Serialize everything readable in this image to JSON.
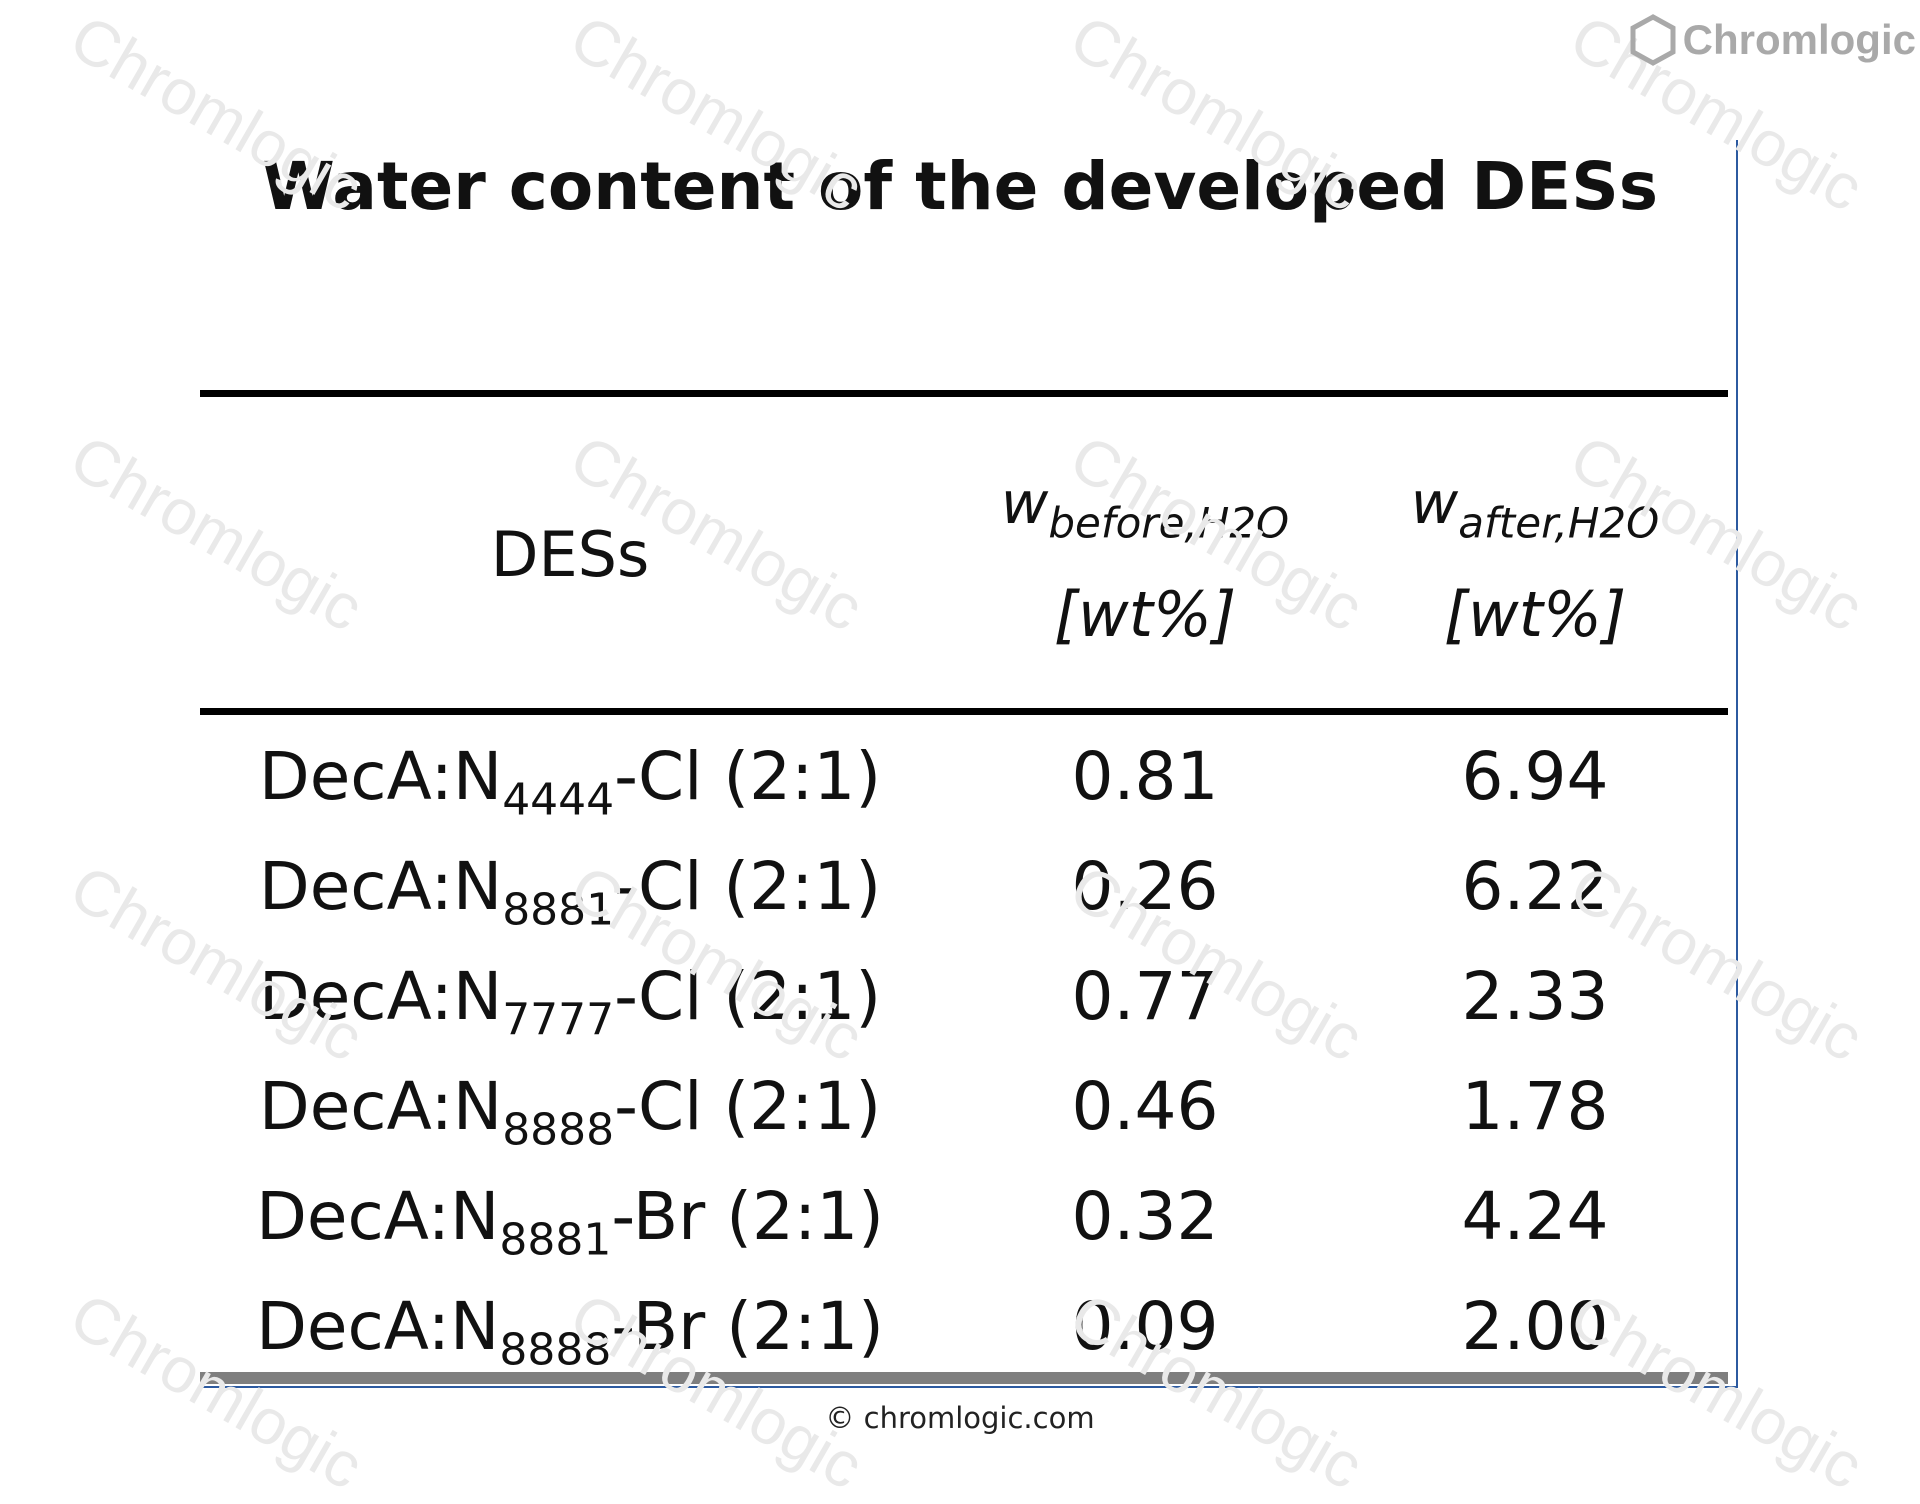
{
  "header": {
    "title": "Water content of the developed DESs"
  },
  "logo": {
    "icon": "hexagon-logo-icon",
    "text": "Chromlogic"
  },
  "table": {
    "col_des": "DESs",
    "col_before_symbol": "w",
    "col_before_sub": "before,H2O",
    "col_before_unit": "[wt%]",
    "col_after_symbol": "w",
    "col_after_sub": "after,H2O",
    "col_after_unit": "[wt%]",
    "rows": [
      {
        "pre": "DecA:N",
        "sub": "4444",
        "post": "-Cl (2:1)",
        "before": "0.81",
        "after": "6.94"
      },
      {
        "pre": "DecA:N",
        "sub": "8881",
        "post": "-Cl (2:1)",
        "before": "0.26",
        "after": "6.22"
      },
      {
        "pre": "DecA:N",
        "sub": "7777",
        "post": "-Cl (2:1)",
        "before": "0.77",
        "after": "2.33"
      },
      {
        "pre": "DecA:N",
        "sub": "8888",
        "post": "-Cl (2:1)",
        "before": "0.46",
        "after": "1.78"
      },
      {
        "pre": "DecA:N",
        "sub": "8881",
        "post": "-Br (2:1)",
        "before": "0.32",
        "after": "4.24"
      },
      {
        "pre": "DecA:N",
        "sub": "8888",
        "post": "-Br (2:1)",
        "before": "0.09",
        "after": "2.00"
      }
    ]
  },
  "watermark": {
    "text": "Chromlogic"
  },
  "footer": {
    "copyright": "© chromlogic.com"
  }
}
